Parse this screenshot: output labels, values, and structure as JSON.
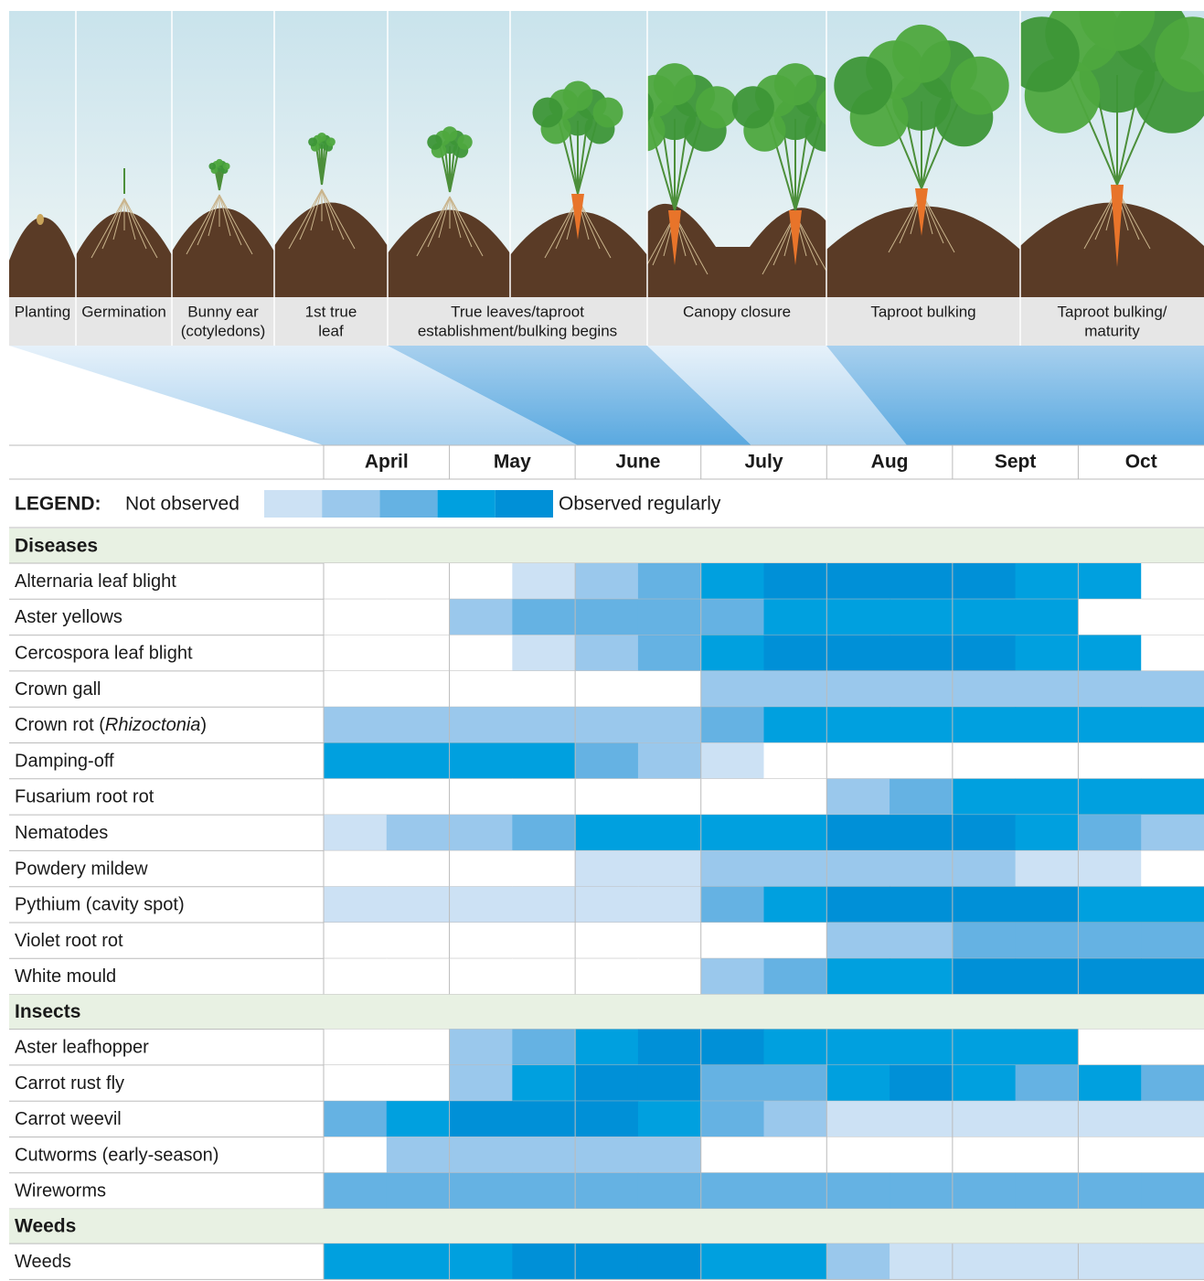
{
  "stages": [
    {
      "lines": [
        "Planting"
      ]
    },
    {
      "lines": [
        "Germination"
      ]
    },
    {
      "lines": [
        "Bunny ear",
        "(cotyledons)"
      ]
    },
    {
      "lines": [
        "1st true",
        "leaf"
      ]
    },
    {
      "lines": [
        "True leaves/taproot",
        "establishment/bulking begins"
      ]
    },
    {
      "lines": [
        "Canopy closure"
      ]
    },
    {
      "lines": [
        "Taproot bulking"
      ]
    },
    {
      "lines": [
        "Taproot bulking/",
        "maturity"
      ]
    }
  ],
  "months": [
    "April",
    "May",
    "June",
    "July",
    "Aug",
    "Sept",
    "Oct"
  ],
  "legend": {
    "title": "LEGEND:",
    "low": "Not observed",
    "high": "Observed regularly",
    "colors": [
      "#cce1f4",
      "#9ac8ec",
      "#65b2e3",
      "#00a0df",
      "#0090d7"
    ]
  },
  "sections": [
    {
      "title": "Diseases",
      "rows": [
        {
          "label": "Alternaria leaf blight",
          "levels": [
            0,
            0,
            0,
            1,
            2,
            3,
            4,
            5,
            5,
            5,
            5,
            4,
            4,
            0
          ]
        },
        {
          "label": "Aster yellows",
          "levels": [
            0,
            0,
            2,
            3,
            3,
            3,
            3,
            4,
            4,
            4,
            4,
            4,
            0,
            0
          ]
        },
        {
          "label": "Cercospora leaf blight",
          "levels": [
            0,
            0,
            0,
            1,
            2,
            3,
            4,
            5,
            5,
            5,
            5,
            4,
            4,
            0
          ]
        },
        {
          "label": "Crown gall",
          "levels": [
            0,
            0,
            0,
            0,
            0,
            0,
            2,
            2,
            2,
            2,
            2,
            2,
            2,
            2
          ]
        },
        {
          "label": [
            "Crown rot (",
            "Rhizoctonia",
            ")"
          ],
          "levels": [
            2,
            2,
            2,
            2,
            2,
            2,
            3,
            4,
            4,
            4,
            4,
            4,
            4,
            4
          ]
        },
        {
          "label": "Damping-off",
          "levels": [
            4,
            4,
            4,
            4,
            3,
            2,
            1,
            0,
            0,
            0,
            0,
            0,
            0,
            0
          ]
        },
        {
          "label": "Fusarium root rot",
          "levels": [
            0,
            0,
            0,
            0,
            0,
            0,
            0,
            0,
            2,
            3,
            4,
            4,
            4,
            4
          ]
        },
        {
          "label": "Nematodes",
          "levels": [
            1,
            2,
            2,
            3,
            4,
            4,
            4,
            4,
            5,
            5,
            5,
            4,
            3,
            2
          ]
        },
        {
          "label": "Powdery mildew",
          "levels": [
            0,
            0,
            0,
            0,
            1,
            1,
            2,
            2,
            2,
            2,
            2,
            1,
            1,
            0
          ]
        },
        {
          "label": "Pythium (cavity spot)",
          "levels": [
            1,
            1,
            1,
            1,
            1,
            1,
            3,
            4,
            5,
            5,
            5,
            5,
            4,
            4
          ]
        },
        {
          "label": "Violet root rot",
          "levels": [
            0,
            0,
            0,
            0,
            0,
            0,
            0,
            0,
            2,
            2,
            3,
            3,
            3,
            3
          ]
        },
        {
          "label": "White mould",
          "levels": [
            0,
            0,
            0,
            0,
            0,
            0,
            2,
            3,
            4,
            4,
            5,
            5,
            5,
            5
          ]
        }
      ]
    },
    {
      "title": "Insects",
      "rows": [
        {
          "label": "Aster leafhopper",
          "levels": [
            0,
            0,
            2,
            3,
            4,
            5,
            5,
            4,
            4,
            4,
            4,
            4,
            0,
            0
          ]
        },
        {
          "label": "Carrot rust fly",
          "levels": [
            0,
            0,
            2,
            4,
            5,
            5,
            3,
            3,
            4,
            5,
            4,
            3,
            4,
            3
          ]
        },
        {
          "label": "Carrot weevil",
          "levels": [
            3,
            4,
            5,
            5,
            5,
            4,
            3,
            2,
            1,
            1,
            1,
            1,
            1,
            1
          ]
        },
        {
          "label": "Cutworms (early-season)",
          "levels": [
            0,
            2,
            2,
            2,
            2,
            2,
            0,
            0,
            0,
            0,
            0,
            0,
            0,
            0
          ]
        },
        {
          "label": "Wireworms",
          "levels": [
            3,
            3,
            3,
            3,
            3,
            3,
            3,
            3,
            3,
            3,
            3,
            3,
            3,
            3
          ]
        }
      ]
    },
    {
      "title": "Weeds",
      "rows": [
        {
          "label": "Weeds",
          "levels": [
            4,
            4,
            4,
            5,
            5,
            5,
            4,
            4,
            2,
            1,
            1,
            1,
            1,
            1
          ]
        }
      ]
    }
  ]
}
